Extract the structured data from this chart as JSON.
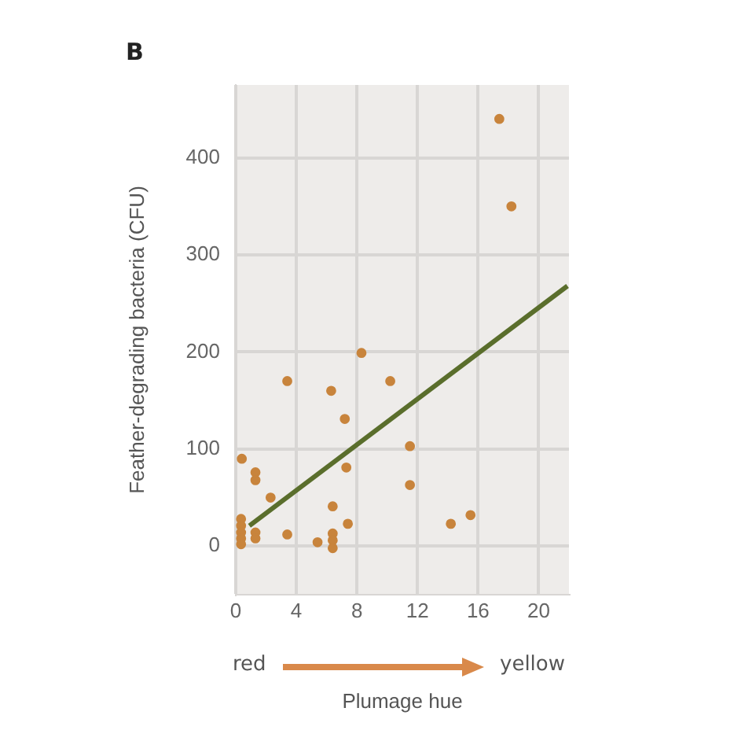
{
  "chart_data": {
    "type": "scatter",
    "title": "B",
    "xlabel": "Plumage hue",
    "ylabel": "Feather-degrading bacteria (CFU)",
    "annotations": [
      "red",
      "yellow"
    ],
    "xlim": [
      0,
      22
    ],
    "xticks": [
      0,
      4,
      8,
      12,
      16,
      20
    ],
    "ylim": [
      -50,
      475
    ],
    "yticks": [
      0,
      100,
      200,
      300,
      400
    ],
    "grid": true,
    "legend": false,
    "series": [
      {
        "color": "#c8843c",
        "marker": "circle",
        "x": [
          17.4,
          18.2,
          8.3,
          3.4,
          10.2,
          6.3,
          7.2,
          11.5,
          7.3,
          11.5,
          0.4,
          1.3,
          1.3,
          2.3,
          6.4,
          7.4,
          14.2,
          15.5,
          3.4,
          5.4,
          6.4,
          6.4,
          6.4,
          0.35,
          0.35,
          0.35,
          0.35,
          0.35,
          1.3,
          1.3
        ],
        "values": [
          440,
          350,
          199,
          170,
          170,
          160,
          131,
          103,
          81,
          63,
          90,
          76,
          68,
          50,
          41,
          23,
          23,
          32,
          12,
          4,
          13,
          6,
          -2,
          28,
          21,
          14,
          8,
          2,
          14,
          8
        ]
      },
      {
        "type": "line",
        "color": "#5a6e2c",
        "marker": "none",
        "x": [
          0.9,
          21.9
        ],
        "values": [
          21,
          268
        ]
      }
    ]
  }
}
